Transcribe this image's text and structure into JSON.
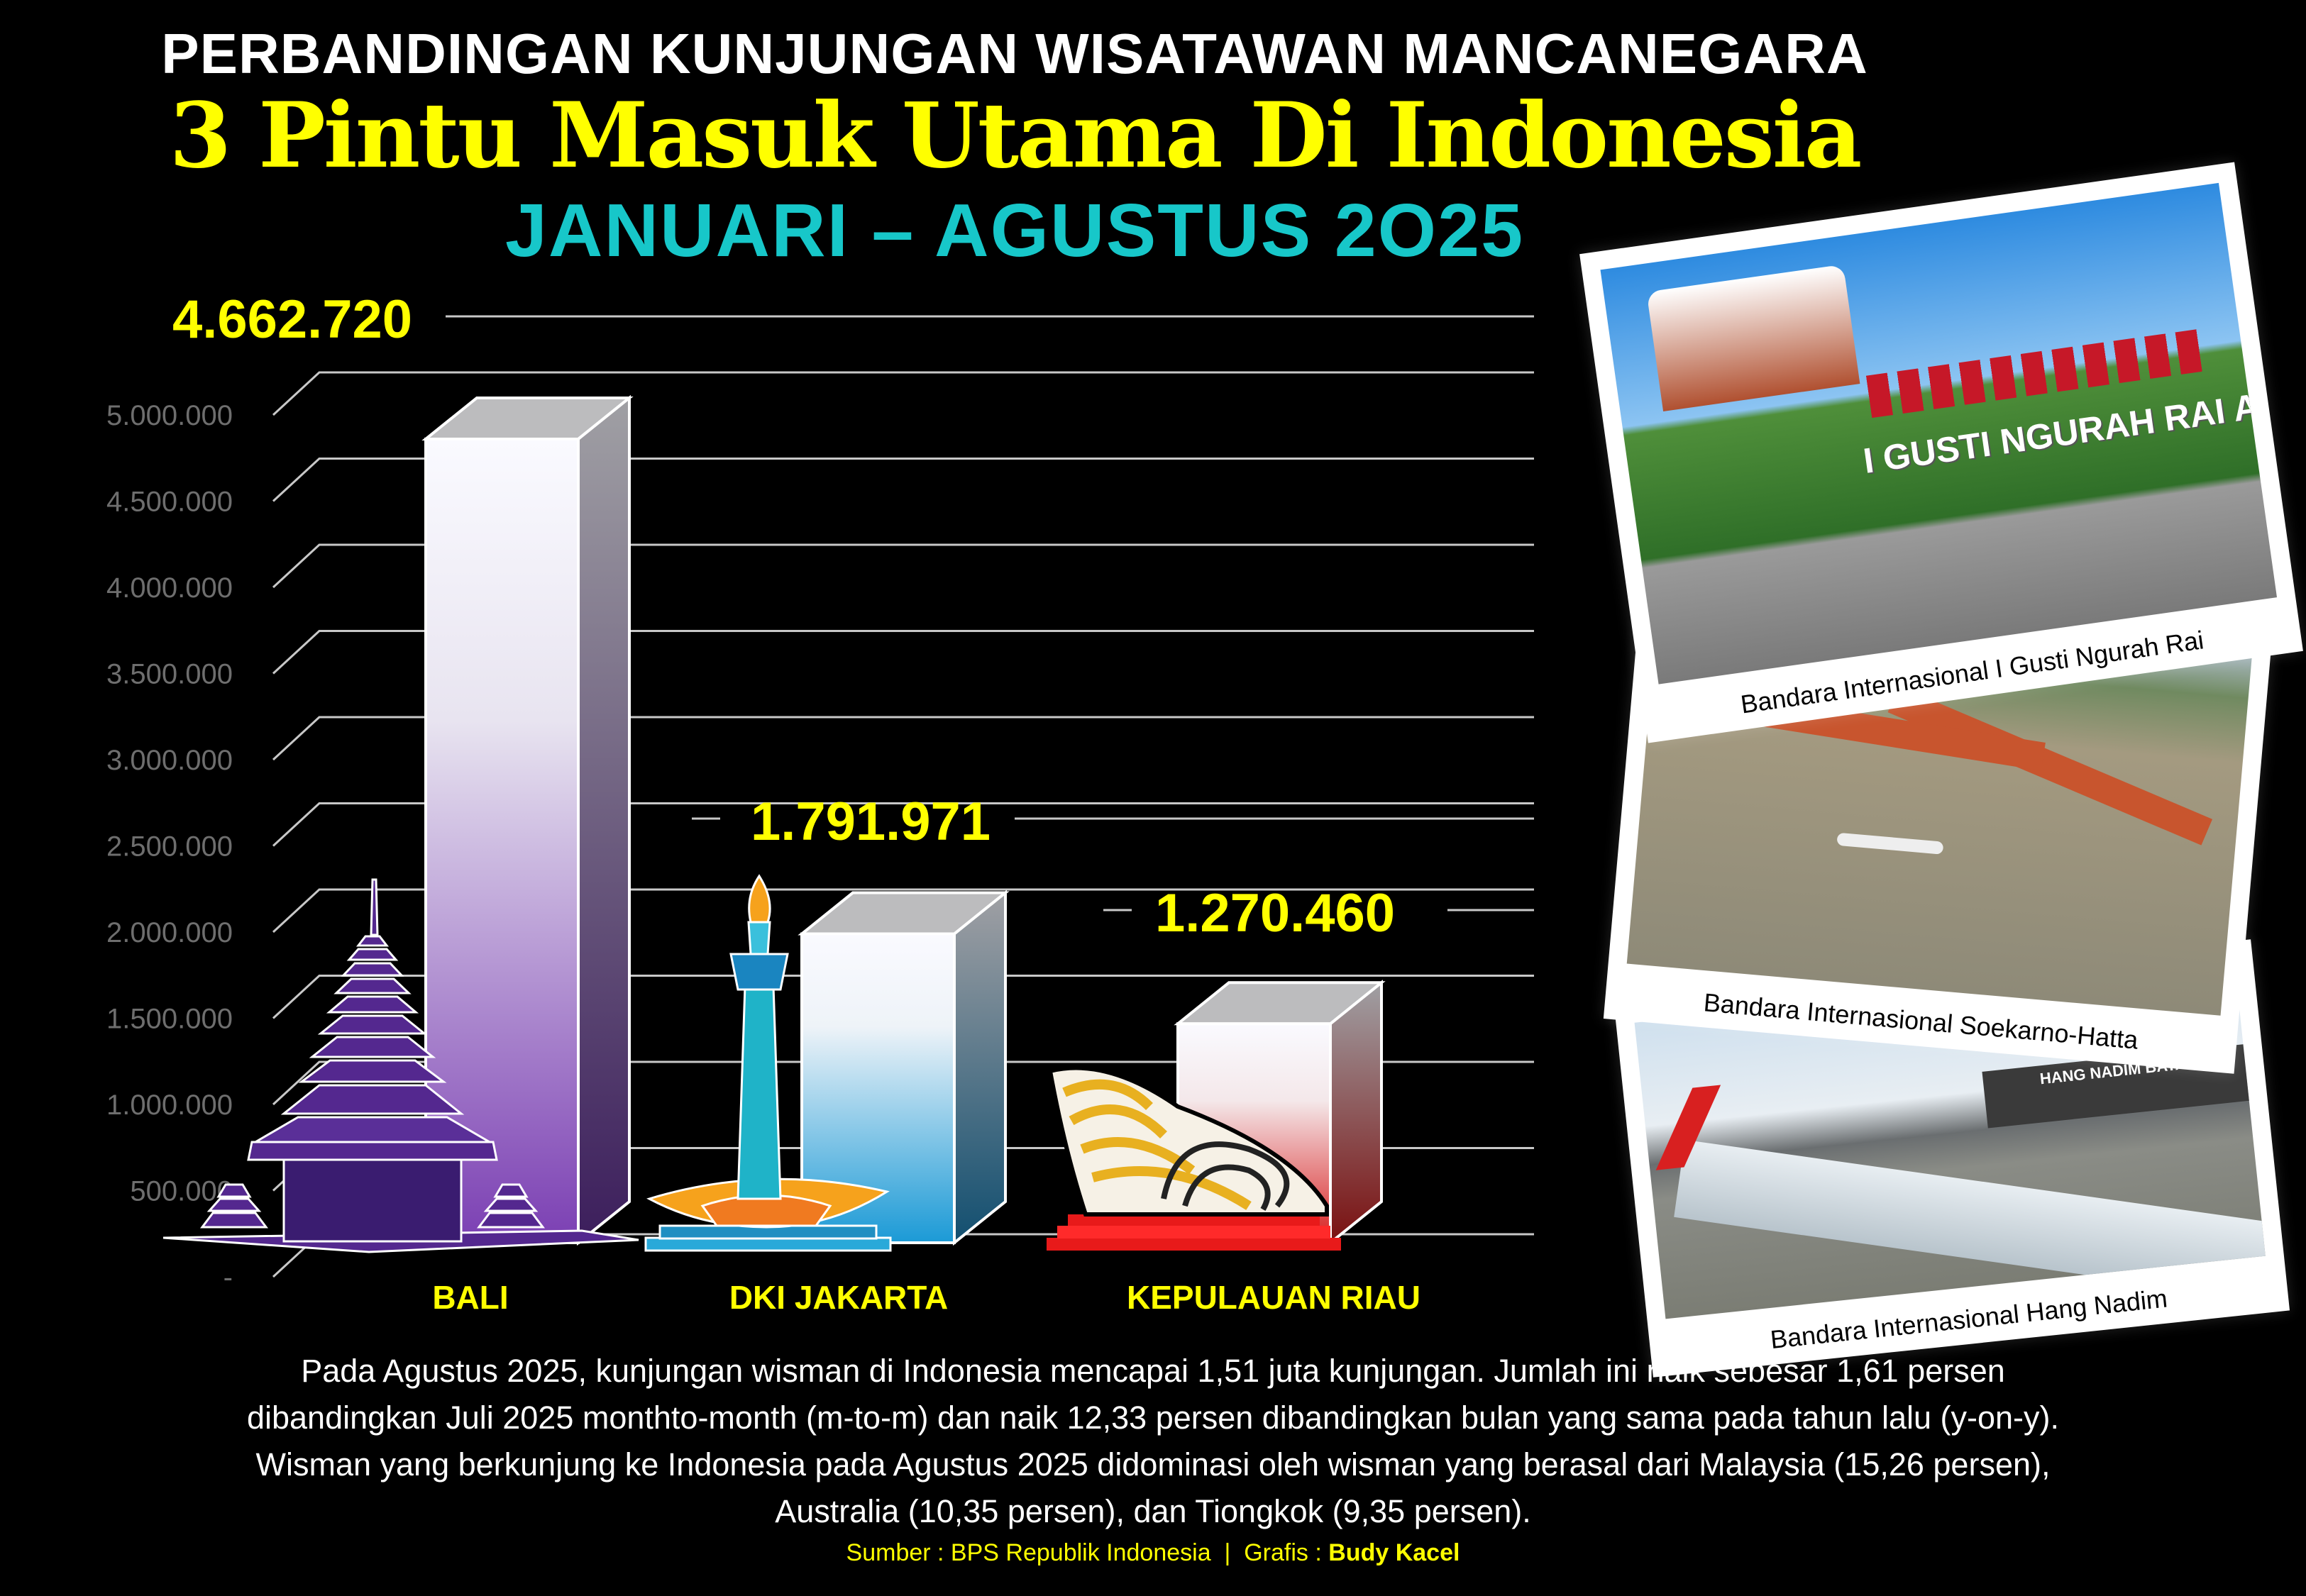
{
  "title": {
    "line1": "PERBANDINGAN KUNJUNGAN WISATAWAN MANCANEGARA",
    "line2": "3 Pintu Masuk Utama Di Indonesia",
    "line3": "JANUARI – AGUSTUS 2O25"
  },
  "chart_data": {
    "type": "bar",
    "style": "3d",
    "categories": [
      "BALI",
      "DKI JAKARTA",
      "KEPULAUAN RIAU"
    ],
    "values": [
      4662720,
      1791971,
      1270460
    ],
    "data_labels": [
      "4.662.720",
      "1.791.971",
      "1.270.460"
    ],
    "yticks": [
      "-",
      "500.000",
      "1.000.000",
      "1.500.000",
      "2.000.000",
      "2.500.000",
      "3.000.000",
      "3.500.000",
      "4.000.000",
      "4.500.000",
      "5.000.000"
    ],
    "ylim": [
      0,
      5000000
    ],
    "grid": true,
    "bar_colors": [
      "#7b3fb3",
      "#1b9ad6",
      "#d81e1e"
    ],
    "label_color": "#ffff00"
  },
  "photos": [
    {
      "caption": "Bandara Internasional I Gusti Ngurah Rai",
      "sign": "I GUSTI NGURAH RAI AIRPORT"
    },
    {
      "caption": "Bandara Internasional Soekarno-Hatta"
    },
    {
      "caption": "Bandara Internasional Hang Nadim",
      "sign": "HANG NADIM BATAM"
    }
  ],
  "paragraph": [
    "Pada Agustus 2025, kunjungan wisman di Indonesia mencapai 1,51 juta kunjungan. Jumlah ini naik sebesar 1,61 persen",
    "dibandingkan Juli 2025 monthto-month (m-to-m) dan naik 12,33 persen dibandingkan bulan yang sama pada tahun lalu (y-on-y).",
    "Wisman yang berkunjung ke Indonesia pada Agustus 2025 didominasi oleh wisman yang berasal dari Malaysia (15,26 persen),",
    "Australia (10,35 persen), dan Tiongkok (9,35 persen)."
  ],
  "source": {
    "prefix": "Sumber : BPS Republik Indonesia  |  Grafis : ",
    "author": "Budy Kacel"
  }
}
